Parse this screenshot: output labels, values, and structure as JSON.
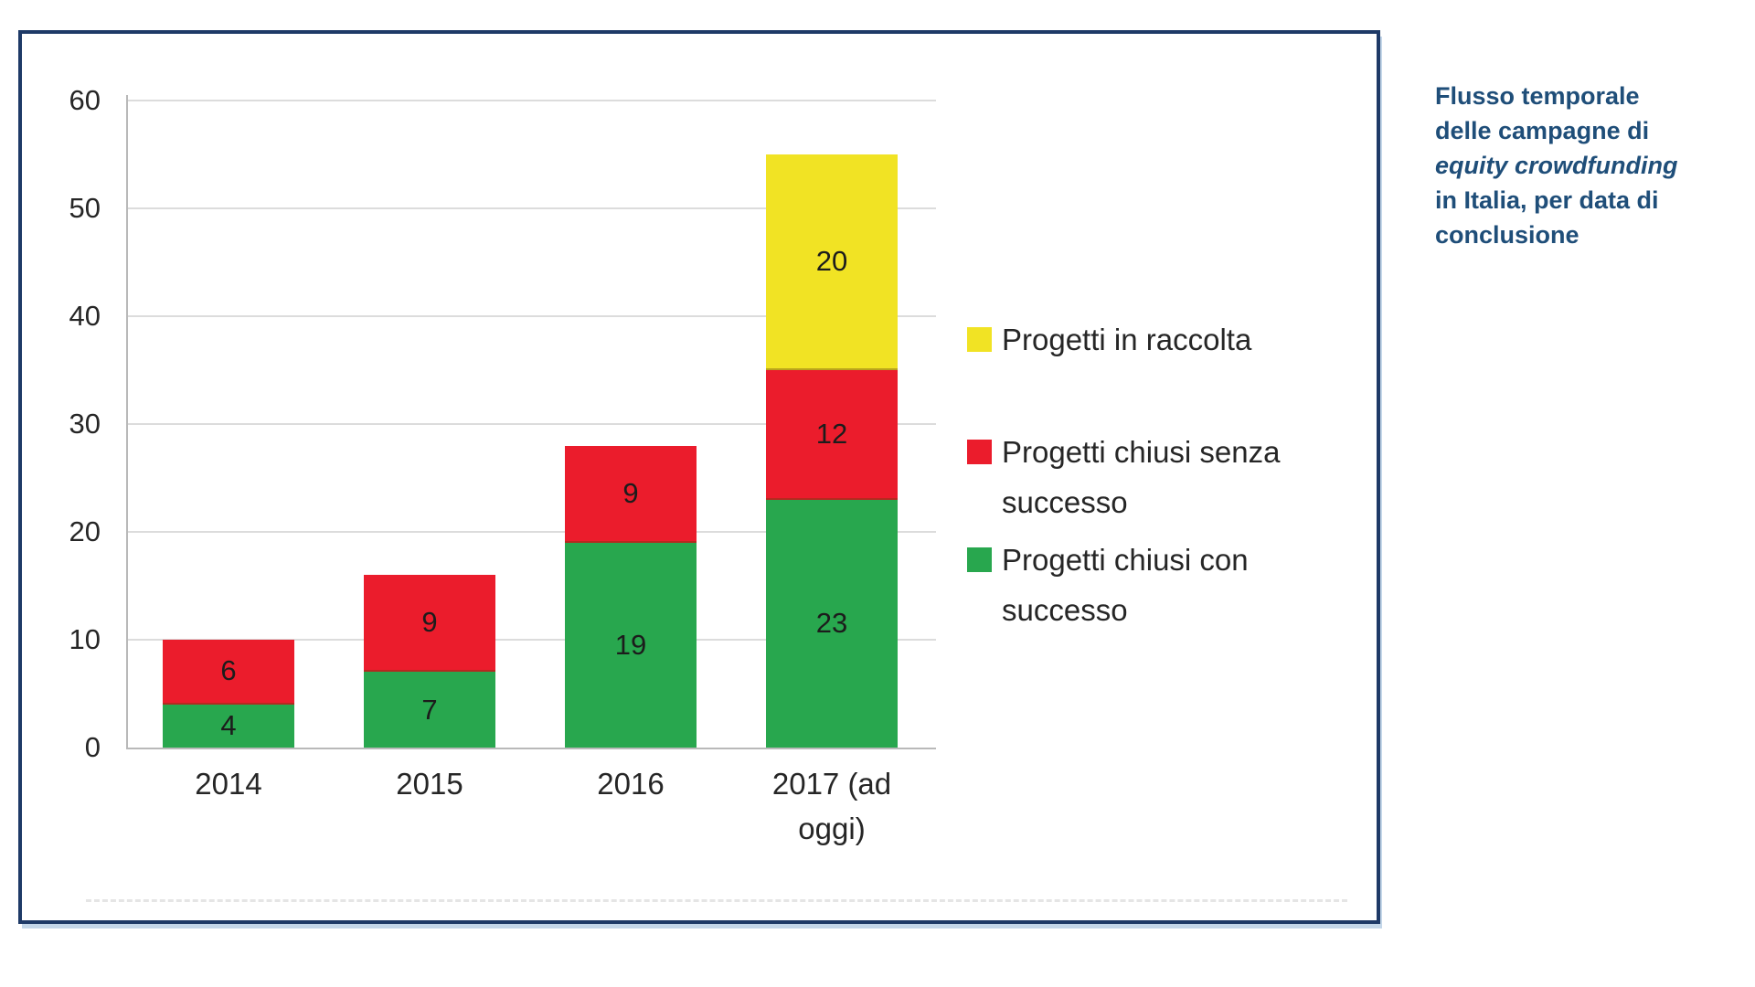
{
  "caption": {
    "color": "#1F4E79",
    "lines": [
      {
        "text": "Flusso temporale",
        "italic": false
      },
      {
        "text": "delle campagne di",
        "italic": false
      },
      {
        "text": "equity crowdfunding",
        "italic": true
      },
      {
        "text": "in Italia, per data di",
        "italic": false
      },
      {
        "text": "conclusione",
        "italic": false
      }
    ]
  },
  "colors": {
    "frame_border": "#1E3A67",
    "frame_shadow": "#C4D7E9",
    "grid": "#DCDCDC",
    "axis": "#B9B9B9",
    "tick_text": "#262626",
    "bar_label_text": "#1C1C1C"
  },
  "chart_data": {
    "type": "bar",
    "stacked": true,
    "title": "",
    "xlabel": "",
    "ylabel": "",
    "categories": [
      "2014",
      "2015",
      "2016",
      "2017 (ad oggi)"
    ],
    "series": [
      {
        "name": "Progetti chiusi con successo",
        "color": "#28A74E",
        "values": [
          4,
          7,
          19,
          23
        ]
      },
      {
        "name": "Progetti chiusi senza successo",
        "color": "#EB1C2C",
        "values": [
          6,
          9,
          9,
          12
        ]
      },
      {
        "name": "Progetti in raccolta",
        "color": "#F1E324",
        "values": [
          0,
          0,
          0,
          20
        ]
      }
    ],
    "totals": [
      10,
      16,
      28,
      55
    ],
    "ylim": [
      0,
      60
    ],
    "yticks": [
      0,
      10,
      20,
      30,
      40,
      50,
      60
    ],
    "grid": true,
    "value_labels": "inside-center",
    "legend_position": "right"
  }
}
